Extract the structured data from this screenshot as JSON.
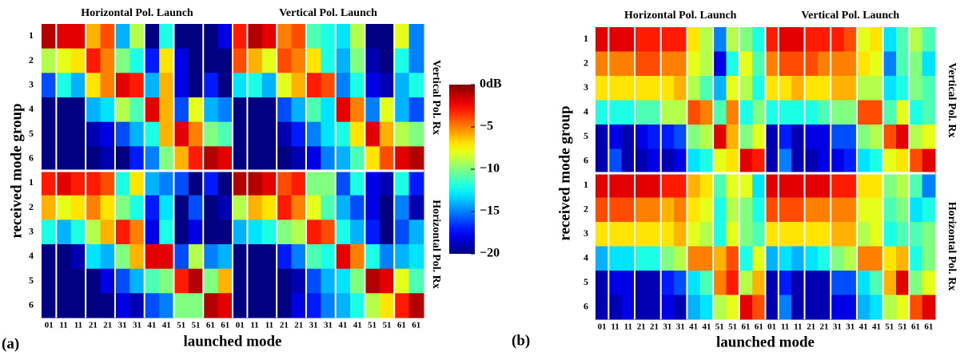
{
  "chart_data": [
    {
      "type": "heatmap",
      "panel_label": "(a)",
      "group_titles": [
        "Horizontal Pol. Launch",
        "Vertical Pol. Launch"
      ],
      "row_group_titles": [
        "Vertical Pol. Rx",
        "Horizontal Pol. Rx"
      ],
      "xlabel": "launched mode",
      "ylabel": "received mode group",
      "x_categories": [
        "01",
        "11",
        "11",
        "21",
        "21",
        "31",
        "31",
        "41",
        "41",
        "51",
        "51",
        "61",
        "61",
        "01",
        "11",
        "11",
        "21",
        "21",
        "31",
        "31",
        "41",
        "41",
        "51",
        "51",
        "61",
        "61"
      ],
      "y_categories": [
        "1",
        "2",
        "3",
        "4",
        "5",
        "6",
        "1",
        "2",
        "3",
        "4",
        "5",
        "6"
      ],
      "colorscale": "jet",
      "zlim": [
        -20,
        0
      ],
      "colorbar_ticks": [
        {
          "value": 0,
          "label": "0dB"
        },
        {
          "value": -5,
          "label": "−5"
        },
        {
          "value": -10,
          "label": "−10"
        },
        {
          "value": -15,
          "label": "−15"
        },
        {
          "value": -20,
          "label": "−20"
        }
      ],
      "values": [
        [
          -1,
          -2,
          -2,
          -6,
          -4,
          -14,
          -9,
          -20,
          -12,
          -20,
          -20,
          -20,
          -18,
          -3,
          -1,
          -2,
          -5,
          -4,
          -11,
          -12,
          -13,
          -9,
          -20,
          -20,
          -8,
          -15
        ],
        [
          -9,
          -8,
          -7,
          -3,
          -5,
          -10,
          -12,
          -17,
          -7,
          -18,
          -20,
          -20,
          -20,
          -4,
          -6,
          -8,
          -4,
          -5,
          -7,
          -12,
          -14,
          -10,
          -19,
          -20,
          -12,
          -15
        ],
        [
          -16,
          -12,
          -14,
          -7,
          -5,
          -2,
          -3,
          -14,
          -6,
          -18,
          -20,
          -17,
          -20,
          -13,
          -12,
          -14,
          -8,
          -6,
          -3,
          -4,
          -15,
          -12,
          -18,
          -19,
          -14,
          -12
        ],
        [
          -20,
          -20,
          -20,
          -14,
          -13,
          -9,
          -11,
          -2,
          -6,
          -16,
          -8,
          -14,
          -15,
          -20,
          -20,
          -20,
          -16,
          -14,
          -11,
          -13,
          -2,
          -5,
          -15,
          -8,
          -14,
          -16
        ],
        [
          -20,
          -20,
          -20,
          -19,
          -18,
          -16,
          -14,
          -12,
          -6,
          -2,
          -5,
          -10,
          -11,
          -20,
          -20,
          -20,
          -19,
          -17,
          -15,
          -13,
          -12,
          -7,
          -2,
          -6,
          -9,
          -10
        ],
        [
          -20,
          -20,
          -20,
          -20,
          -19,
          -20,
          -17,
          -15,
          -10,
          -6,
          -3,
          -1,
          -2,
          -20,
          -20,
          -20,
          -20,
          -19,
          -18,
          -15,
          -14,
          -11,
          -7,
          -4,
          -2,
          -1
        ],
        [
          -3,
          -2,
          -3,
          -3,
          -4,
          -12,
          -7,
          -14,
          -15,
          -16,
          -20,
          -17,
          -20,
          -1,
          -1,
          -2,
          -4,
          -3,
          -10,
          -10,
          -16,
          -12,
          -18,
          -19,
          -12,
          -17
        ],
        [
          -6,
          -8,
          -7,
          -5,
          -7,
          -10,
          -12,
          -17,
          -13,
          -20,
          -16,
          -20,
          -19,
          -9,
          -6,
          -7,
          -3,
          -5,
          -8,
          -11,
          -14,
          -16,
          -18,
          -20,
          -15,
          -19
        ],
        [
          -12,
          -14,
          -12,
          -9,
          -6,
          -3,
          -5,
          -18,
          -12,
          -20,
          -18,
          -20,
          -20,
          -14,
          -13,
          -12,
          -10,
          -9,
          -3,
          -4,
          -12,
          -14,
          -17,
          -20,
          -16,
          -14
        ],
        [
          -20,
          -20,
          -19,
          -13,
          -14,
          -10,
          -6,
          -2,
          -2,
          -16,
          -9,
          -15,
          -14,
          -20,
          -20,
          -20,
          -17,
          -15,
          -11,
          -12,
          -2,
          -5,
          -12,
          -15,
          -14,
          -13
        ],
        [
          -20,
          -20,
          -20,
          -20,
          -18,
          -16,
          -14,
          -11,
          -10,
          -3,
          -1,
          -10,
          -6,
          -20,
          -20,
          -20,
          -20,
          -19,
          -16,
          -14,
          -13,
          -10,
          -1,
          -2,
          -8,
          -11
        ],
        [
          -20,
          -20,
          -20,
          -20,
          -20,
          -18,
          -19,
          -16,
          -15,
          -10,
          -10,
          -1,
          -2,
          -20,
          -20,
          -20,
          -20,
          -18,
          -17,
          -15,
          -14,
          -12,
          -9,
          -7,
          -3,
          -1
        ]
      ]
    },
    {
      "type": "heatmap",
      "panel_label": "(b)",
      "group_titles": [
        "Horizontal Pol. Launch",
        "Vertical Pol. Launch"
      ],
      "row_group_titles": [
        "Vertical Pol. Rx",
        "Horizontal Pol. Rx"
      ],
      "xlabel": "launched mode",
      "ylabel": "received mode group",
      "x_categories": [
        "01",
        "11",
        "11",
        "21",
        "21",
        "31",
        "31",
        "41",
        "41",
        "51",
        "51",
        "61",
        "61",
        "01",
        "11",
        "11",
        "21",
        "21",
        "31",
        "31",
        "41",
        "41",
        "51",
        "51",
        "61",
        "61"
      ],
      "y_categories": [
        "1",
        "2",
        "3",
        "4",
        "5",
        "6",
        "1",
        "2",
        "3",
        "4",
        "5",
        "6"
      ],
      "colorscale": "jet",
      "zlim": [
        -20,
        0
      ],
      "values": [
        [
          -2,
          -2,
          -2,
          -3,
          -3,
          -3,
          -3,
          -7,
          -9,
          -15,
          -9,
          -10,
          -12,
          -3,
          -2,
          -2,
          -3,
          -3,
          -3,
          -4,
          -8,
          -7,
          -13,
          -11,
          -9,
          -11
        ],
        [
          -5,
          -5,
          -5,
          -4,
          -4,
          -5,
          -5,
          -8,
          -9,
          -18,
          -12,
          -8,
          -11,
          -5,
          -4,
          -4,
          -4,
          -5,
          -5,
          -5,
          -7,
          -8,
          -15,
          -11,
          -10,
          -13
        ],
        [
          -7,
          -7,
          -7,
          -7,
          -7,
          -7,
          -6,
          -9,
          -11,
          -14,
          -8,
          -9,
          -12,
          -7,
          -7,
          -6,
          -7,
          -7,
          -6,
          -6,
          -9,
          -9,
          -13,
          -12,
          -10,
          -11
        ],
        [
          -12,
          -12,
          -12,
          -11,
          -11,
          -9,
          -9,
          -4,
          -5,
          -11,
          -5,
          -12,
          -10,
          -12,
          -12,
          -12,
          -12,
          -11,
          -10,
          -10,
          -4,
          -4,
          -11,
          -8,
          -12,
          -11
        ],
        [
          -19,
          -18,
          -19,
          -18,
          -17,
          -17,
          -16,
          -10,
          -9,
          -2,
          -6,
          -10,
          -8,
          -19,
          -17,
          -19,
          -18,
          -18,
          -16,
          -16,
          -10,
          -9,
          -4,
          -2,
          -9,
          -8
        ],
        [
          -19,
          -16,
          -19,
          -19,
          -18,
          -19,
          -18,
          -13,
          -12,
          -8,
          -7,
          -2,
          -3,
          -19,
          -15,
          -19,
          -19,
          -18,
          -18,
          -17,
          -13,
          -12,
          -8,
          -7,
          -4,
          -2
        ],
        [
          -2,
          -2,
          -2,
          -2,
          -2,
          -3,
          -3,
          -6,
          -7,
          -11,
          -8,
          -8,
          -13,
          -2,
          -2,
          -2,
          -2,
          -2,
          -3,
          -3,
          -7,
          -7,
          -10,
          -9,
          -11,
          -15
        ],
        [
          -4,
          -4,
          -4,
          -5,
          -5,
          -6,
          -5,
          -7,
          -8,
          -12,
          -9,
          -10,
          -12,
          -4,
          -4,
          -4,
          -5,
          -5,
          -5,
          -5,
          -8,
          -8,
          -11,
          -10,
          -13,
          -12
        ],
        [
          -7,
          -7,
          -7,
          -7,
          -7,
          -7,
          -6,
          -8,
          -9,
          -12,
          -8,
          -10,
          -11,
          -7,
          -7,
          -7,
          -7,
          -7,
          -6,
          -6,
          -9,
          -8,
          -12,
          -11,
          -11,
          -10
        ],
        [
          -14,
          -13,
          -13,
          -12,
          -12,
          -10,
          -9,
          -5,
          -5,
          -6,
          -4,
          -12,
          -8,
          -14,
          -13,
          -14,
          -13,
          -12,
          -10,
          -9,
          -5,
          -5,
          -7,
          -6,
          -12,
          -10
        ],
        [
          -19,
          -18,
          -18,
          -19,
          -19,
          -17,
          -16,
          -13,
          -11,
          -5,
          -3,
          -9,
          -6,
          -19,
          -17,
          -19,
          -19,
          -19,
          -16,
          -16,
          -13,
          -11,
          -6,
          -2,
          -10,
          -8
        ],
        [
          -19,
          -19,
          -18,
          -19,
          -19,
          -18,
          -19,
          -14,
          -13,
          -9,
          -8,
          -2,
          -4,
          -19,
          -15,
          -19,
          -19,
          -19,
          -18,
          -18,
          -14,
          -13,
          -9,
          -8,
          -4,
          -2
        ]
      ]
    }
  ]
}
